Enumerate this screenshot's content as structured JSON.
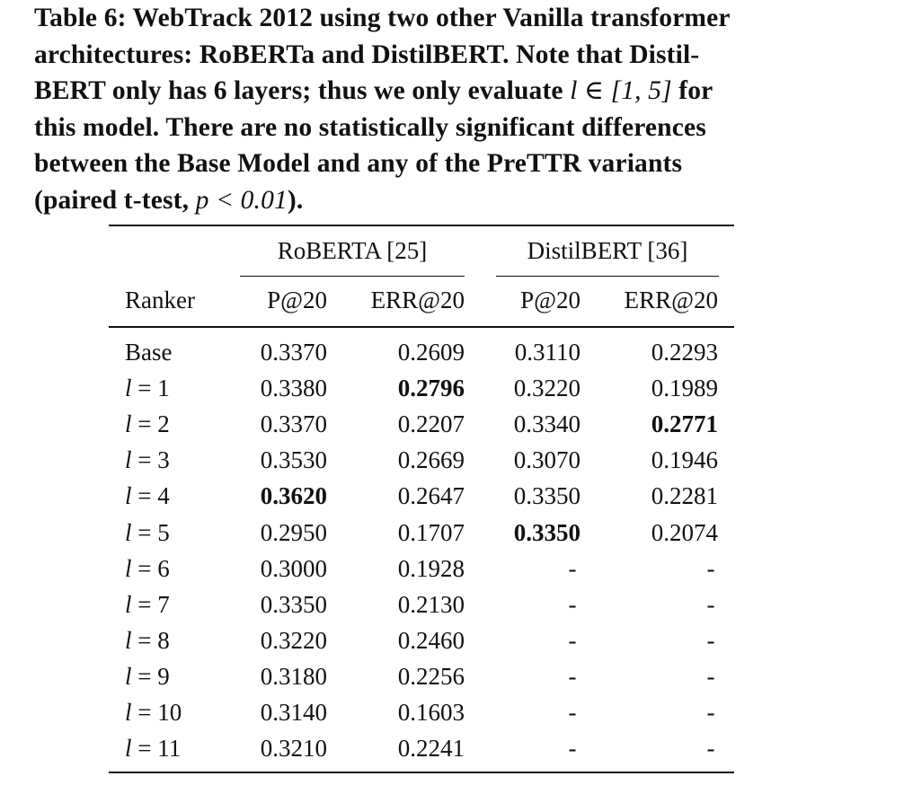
{
  "caption": {
    "line1": "Table 6: WebTrack 2012 using two other Vanilla transformer",
    "line2": "architectures: RoBERTa and DistilBERT. Note that Distil-",
    "line3_pre": "BERT only has 6 layers; thus we only evaluate",
    "line3_math": "l ∈ [1, 5]",
    "line3_post": "for",
    "line4": "this model. There are no statistically significant differences",
    "line5": "between the Base Model and any of the PreTTR variants",
    "line6_pre": "(paired t-test,",
    "line6_math": "p < 0.01",
    "line6_post": ")."
  },
  "table": {
    "groups": [
      "RoBERTA [25]",
      "DistilBERT [36]"
    ],
    "ranker_header": "Ranker",
    "columns": [
      "P@20",
      "ERR@20",
      "P@20",
      "ERR@20"
    ],
    "rows": [
      {
        "label": "Base",
        "cells": [
          "0.3370",
          "0.2609",
          "0.3110",
          "0.2293"
        ],
        "bold": [
          false,
          false,
          false,
          false
        ]
      },
      {
        "label": "l = 1",
        "cells": [
          "0.3380",
          "0.2796",
          "0.3220",
          "0.1989"
        ],
        "bold": [
          false,
          true,
          false,
          false
        ]
      },
      {
        "label": "l = 2",
        "cells": [
          "0.3370",
          "0.2207",
          "0.3340",
          "0.2771"
        ],
        "bold": [
          false,
          false,
          false,
          true
        ]
      },
      {
        "label": "l = 3",
        "cells": [
          "0.3530",
          "0.2669",
          "0.3070",
          "0.1946"
        ],
        "bold": [
          false,
          false,
          false,
          false
        ]
      },
      {
        "label": "l = 4",
        "cells": [
          "0.3620",
          "0.2647",
          "0.3350",
          "0.2281"
        ],
        "bold": [
          true,
          false,
          false,
          false
        ]
      },
      {
        "label": "l = 5",
        "cells": [
          "0.2950",
          "0.1707",
          "0.3350",
          "0.2074"
        ],
        "bold": [
          false,
          false,
          true,
          false
        ]
      },
      {
        "label": "l = 6",
        "cells": [
          "0.3000",
          "0.1928",
          "-",
          "-"
        ],
        "bold": [
          false,
          false,
          false,
          false
        ]
      },
      {
        "label": "l = 7",
        "cells": [
          "0.3350",
          "0.2130",
          "-",
          "-"
        ],
        "bold": [
          false,
          false,
          false,
          false
        ]
      },
      {
        "label": "l = 8",
        "cells": [
          "0.3220",
          "0.2460",
          "-",
          "-"
        ],
        "bold": [
          false,
          false,
          false,
          false
        ]
      },
      {
        "label": "l = 9",
        "cells": [
          "0.3180",
          "0.2256",
          "-",
          "-"
        ],
        "bold": [
          false,
          false,
          false,
          false
        ]
      },
      {
        "label": "l = 10",
        "cells": [
          "0.3140",
          "0.1603",
          "-",
          "-"
        ],
        "bold": [
          false,
          false,
          false,
          false
        ]
      },
      {
        "label": "l = 11",
        "cells": [
          "0.3210",
          "0.2241",
          "-",
          "-"
        ],
        "bold": [
          false,
          false,
          false,
          false
        ]
      }
    ]
  }
}
